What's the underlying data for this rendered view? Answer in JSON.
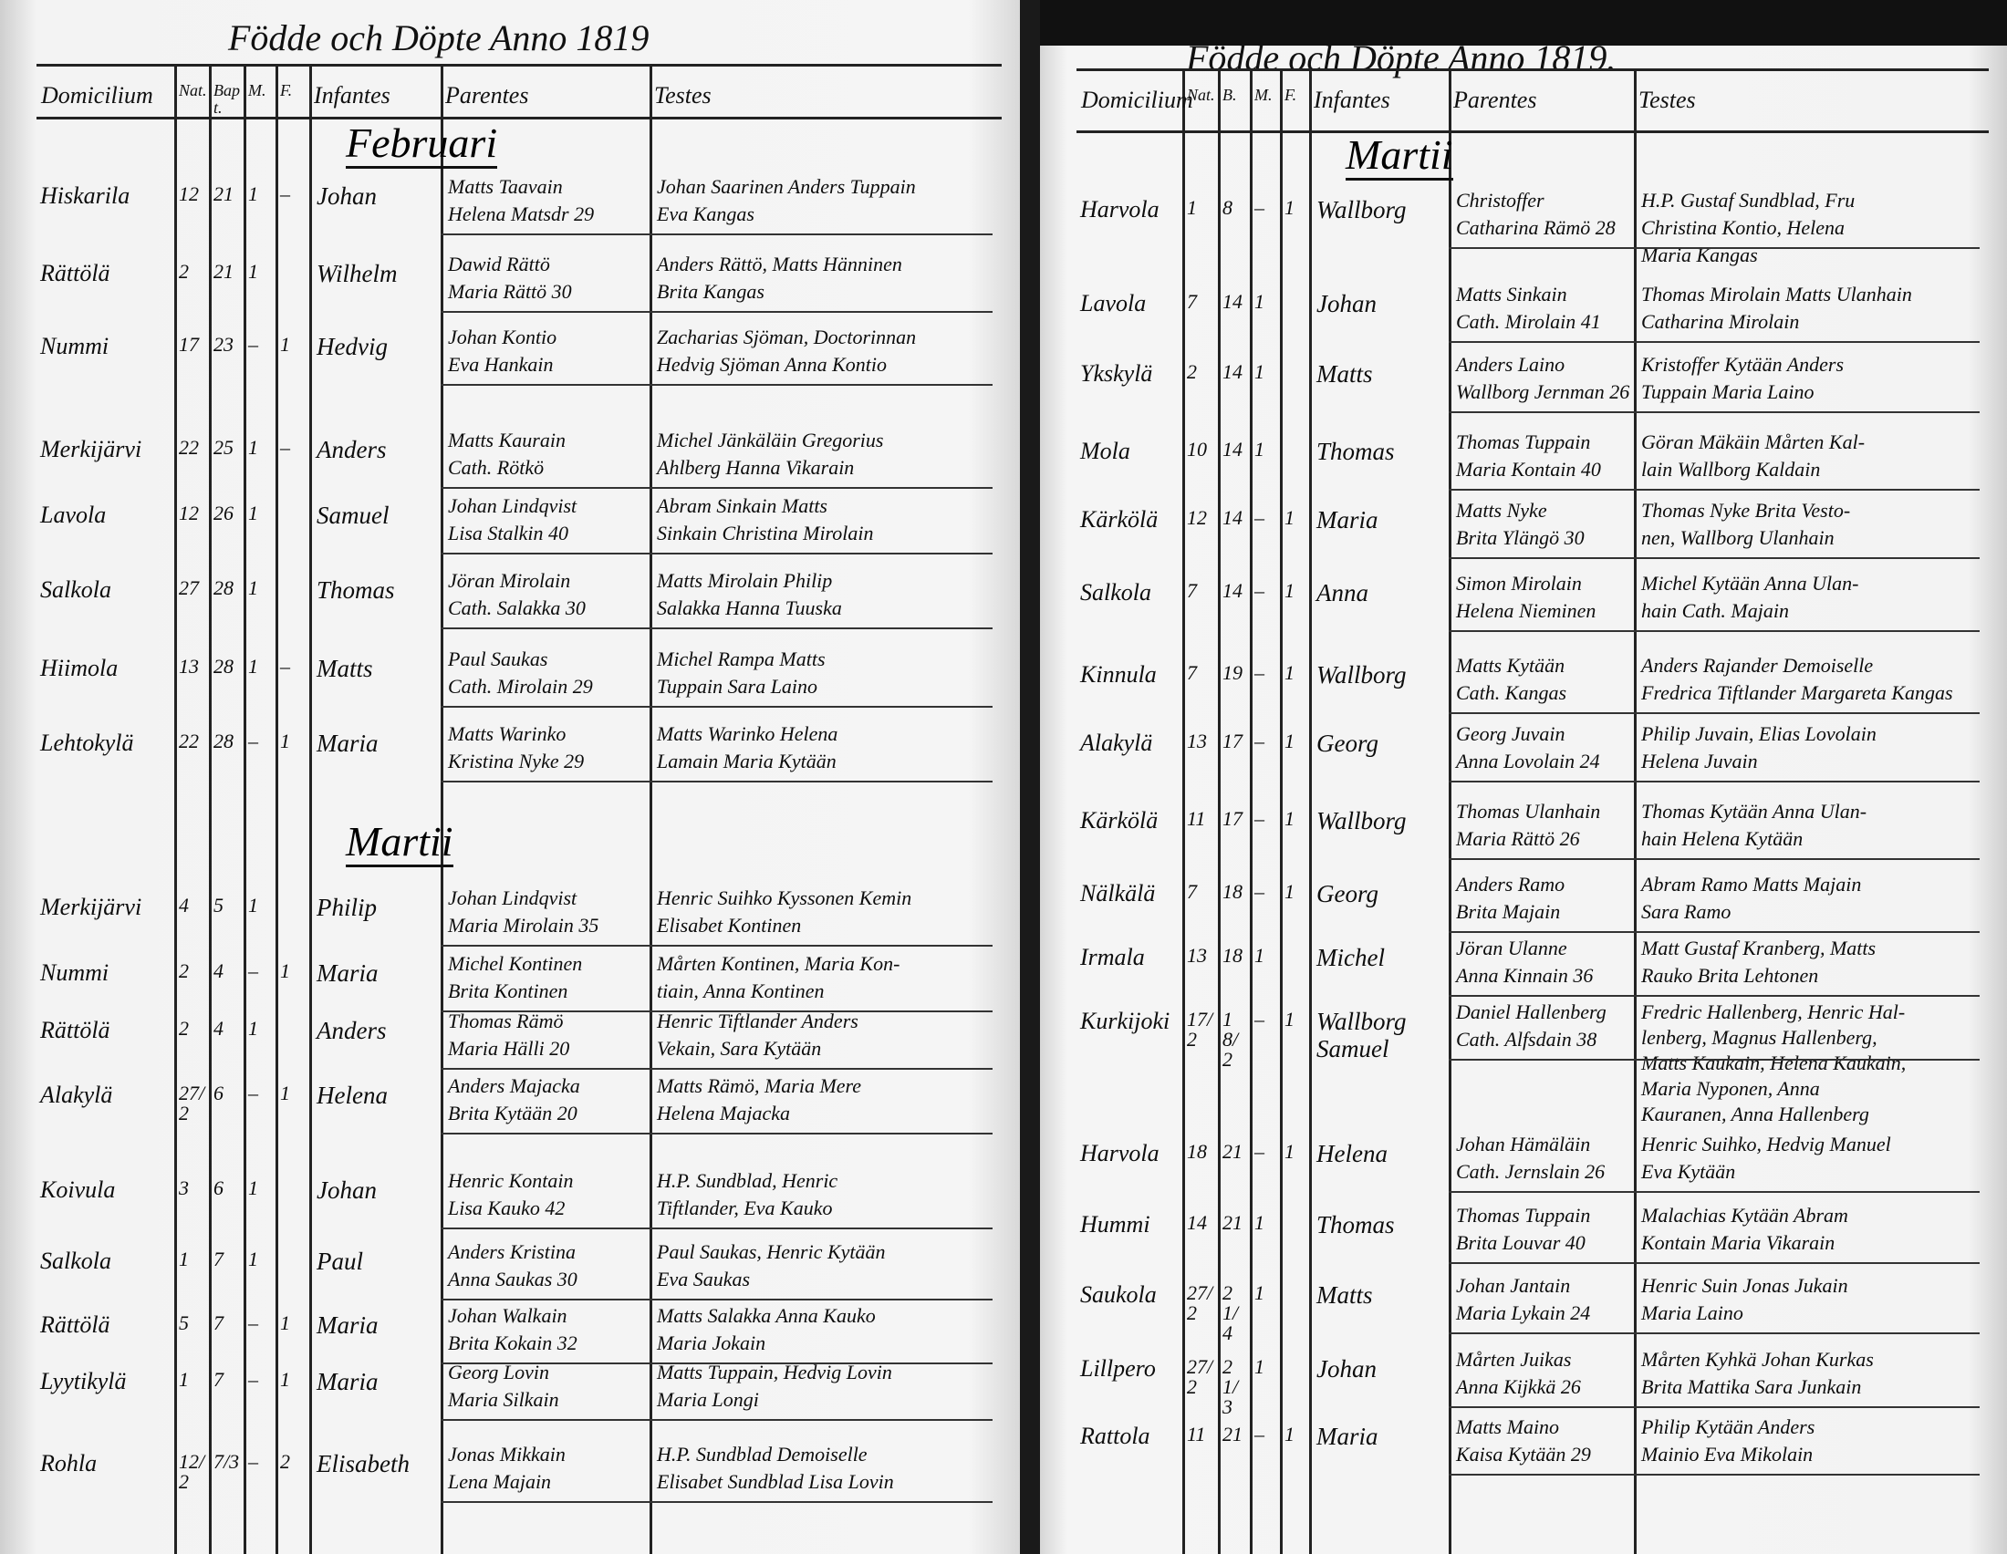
{
  "left_page": {
    "title": "Födde och Döpte Anno 1819",
    "columns": [
      "Domicilium",
      "Nat.",
      "Bapt.",
      "M.",
      "F.",
      "Infantes",
      "Parentes",
      "Testes"
    ],
    "months": [
      {
        "label": "Februari",
        "before_row": 0
      },
      {
        "label": "Martii",
        "before_row": 8
      }
    ],
    "rows": [
      {
        "domicilium": "Hiskarila",
        "nat": "12",
        "bapt": "21",
        "m": "1",
        "f": "–",
        "infans": "Johan",
        "parentes": [
          "Matts Taavain",
          "Helena Matsdr 29"
        ],
        "testes": [
          "Johan Saarinen Anders Tuppain",
          "Eva Kangas"
        ]
      },
      {
        "domicilium": "Rättölä",
        "nat": "2",
        "bapt": "21",
        "m": "1",
        "f": "",
        "infans": "Wilhelm",
        "parentes": [
          "Dawid Rättö",
          "Maria Rättö 30"
        ],
        "testes": [
          "Anders Rättö, Matts Hänninen",
          "Brita Kangas"
        ]
      },
      {
        "domicilium": "Nummi",
        "nat": "17",
        "bapt": "23",
        "m": "–",
        "f": "1",
        "infans": "Hedvig",
        "parentes": [
          "Johan Kontio",
          "Eva Hankain"
        ],
        "testes": [
          "Zacharias Sjöman, Doctorinnan",
          "Hedvig Sjöman Anna Kontio"
        ]
      },
      {
        "domicilium": "Merkijärvi",
        "nat": "22",
        "bapt": "25",
        "m": "1",
        "f": "–",
        "infans": "Anders",
        "parentes": [
          "Matts Kaurain",
          "Cath. Rötkö"
        ],
        "testes": [
          "Michel Jänkäläin Gregorius",
          "Ahlberg Hanna Vikarain"
        ]
      },
      {
        "domicilium": "Lavola",
        "nat": "12",
        "bapt": "26",
        "m": "1",
        "f": "",
        "infans": "Samuel",
        "parentes": [
          "Johan Lindqvist",
          "Lisa Stalkin 40"
        ],
        "testes": [
          "Abram Sinkain Matts",
          "Sinkain Christina Mirolain"
        ]
      },
      {
        "domicilium": "Salkola",
        "nat": "27",
        "bapt": "28",
        "m": "1",
        "f": "",
        "infans": "Thomas",
        "parentes": [
          "Jöran Mirolain",
          "Cath. Salakka 30"
        ],
        "testes": [
          "Matts Mirolain Philip",
          "Salakka Hanna Tuuska"
        ]
      },
      {
        "domicilium": "Hiimola",
        "nat": "13",
        "bapt": "28",
        "m": "1",
        "f": "–",
        "infans": "Matts",
        "parentes": [
          "Paul Saukas",
          "Cath. Mirolain 29"
        ],
        "testes": [
          "Michel Rampa Matts",
          "Tuppain Sara Laino"
        ]
      },
      {
        "domicilium": "Lehtokylä",
        "nat": "22",
        "bapt": "28",
        "m": "–",
        "f": "1",
        "infans": "Maria",
        "parentes": [
          "Matts Warinko",
          "Kristina Nyke 29"
        ],
        "testes": [
          "Matts Warinko Helena",
          "Lamain Maria Kytään"
        ]
      },
      {
        "domicilium": "Merkijärvi",
        "nat": "4",
        "bapt": "5",
        "m": "1",
        "f": "",
        "infans": "Philip",
        "parentes": [
          "Johan Lindqvist",
          "Maria Mirolain 35"
        ],
        "testes": [
          "Henric Suihko Kyssonen Kemin",
          "Elisabet Kontinen"
        ]
      },
      {
        "domicilium": "Nummi",
        "nat": "2",
        "bapt": "4",
        "m": "–",
        "f": "1",
        "infans": "Maria",
        "parentes": [
          "Michel Kontinen",
          "Brita Kontinen"
        ],
        "testes": [
          "Mårten Kontinen, Maria Kon-",
          "tiain, Anna Kontinen"
        ]
      },
      {
        "domicilium": "Rättölä",
        "nat": "2",
        "bapt": "4",
        "m": "1",
        "f": "",
        "infans": "Anders",
        "parentes": [
          "Thomas Rämö",
          "Maria Hälli 20"
        ],
        "testes": [
          "Henric Tiftlander Anders",
          "Vekain, Sara Kytään"
        ]
      },
      {
        "domicilium": "Alakylä",
        "nat": "27/2",
        "bapt": "6",
        "m": "–",
        "f": "1",
        "infans": "Helena",
        "parentes": [
          "Anders Majacka",
          "Brita Kytään 20"
        ],
        "testes": [
          "Matts Rämö, Maria Mere",
          "Helena Majacka"
        ]
      },
      {
        "domicilium": "Koivula",
        "nat": "3",
        "bapt": "6",
        "m": "1",
        "f": "",
        "infans": "Johan",
        "parentes": [
          "Henric Kontain",
          "Lisa Kauko 42"
        ],
        "testes": [
          "H.P. Sundblad, Henric",
          "Tiftlander, Eva Kauko"
        ]
      },
      {
        "domicilium": "Salkola",
        "nat": "1",
        "bapt": "7",
        "m": "1",
        "f": "",
        "infans": "Paul",
        "parentes": [
          "Anders Kristina",
          "Anna Saukas 30"
        ],
        "testes": [
          "Paul Saukas, Henric Kytään",
          "Eva Saukas"
        ]
      },
      {
        "domicilium": "Rättölä",
        "nat": "5",
        "bapt": "7",
        "m": "–",
        "f": "1",
        "infans": "Maria",
        "parentes": [
          "Johan Walkain",
          "Brita Kokain 32"
        ],
        "testes": [
          "Matts Salakka Anna Kauko",
          "Maria Jokain"
        ]
      },
      {
        "domicilium": "Lyytikylä",
        "nat": "1",
        "bapt": "7",
        "m": "–",
        "f": "1",
        "infans": "Maria",
        "parentes": [
          "Georg Lovin",
          "Maria Silkain"
        ],
        "testes": [
          "Matts Tuppain, Hedvig Lovin",
          "Maria Longi"
        ]
      },
      {
        "domicilium": "Rohla",
        "nat": "12/2",
        "bapt": "7/3",
        "m": "–",
        "f": "2",
        "infans": "Elisabeth",
        "parentes": [
          "Jonas Mikkain",
          "Lena Majain"
        ],
        "testes": [
          "H.P. Sundblad Demoiselle",
          "Elisabet Sundblad Lisa Lovin"
        ]
      }
    ]
  },
  "right_page": {
    "title": "Födde och Döpte Anno 1819.",
    "columns": [
      "Domicilium",
      "Nat.",
      "B.",
      "M.",
      "F.",
      "Infantes",
      "Parentes",
      "Testes"
    ],
    "months": [
      {
        "label": "Martii",
        "before_row": 0
      }
    ],
    "rows": [
      {
        "domicilium": "Harvola",
        "nat": "1",
        "bapt": "8",
        "m": "–",
        "f": "1",
        "infans": "Wallborg",
        "parentes": [
          "Christoffer",
          "Catharina Rämö 28"
        ],
        "testes": [
          "H.P. Gustaf Sundblad, Fru",
          "Christina Kontio, Helena",
          "Maria Kangas"
        ]
      },
      {
        "domicilium": "Lavola",
        "nat": "7",
        "bapt": "14",
        "m": "1",
        "f": "",
        "infans": "Johan",
        "parentes": [
          "Matts Sinkain",
          "Cath. Mirolain 41"
        ],
        "testes": [
          "Thomas Mirolain Matts Ulanhain",
          "Catharina Mirolain"
        ]
      },
      {
        "domicilium": "Ykskylä",
        "nat": "2",
        "bapt": "14",
        "m": "1",
        "f": "",
        "infans": "Matts",
        "parentes": [
          "Anders Laino",
          "Wallborg Jernman 26"
        ],
        "testes": [
          "Kristoffer Kytään Anders",
          "Tuppain Maria Laino"
        ]
      },
      {
        "domicilium": "Mola",
        "nat": "10",
        "bapt": "14",
        "m": "1",
        "f": "",
        "infans": "Thomas",
        "parentes": [
          "Thomas Tuppain",
          "Maria Kontain 40"
        ],
        "testes": [
          "Göran Mäkäin Mårten Kal-",
          "lain Wallborg Kaldain"
        ]
      },
      {
        "domicilium": "Kärkölä",
        "nat": "12",
        "bapt": "14",
        "m": "–",
        "f": "1",
        "infans": "Maria",
        "parentes": [
          "Matts Nyke",
          "Brita Ylängö 30"
        ],
        "testes": [
          "Thomas Nyke Brita Vesto-",
          "nen, Wallborg Ulanhain"
        ]
      },
      {
        "domicilium": "Salkola",
        "nat": "7",
        "bapt": "14",
        "m": "–",
        "f": "1",
        "infans": "Anna",
        "parentes": [
          "Simon Mirolain",
          "Helena Nieminen"
        ],
        "testes": [
          "Michel Kytään Anna Ulan-",
          "hain Cath. Majain"
        ]
      },
      {
        "domicilium": "Kinnula",
        "nat": "7",
        "bapt": "19",
        "m": "–",
        "f": "1",
        "infans": "Wallborg",
        "parentes": [
          "Matts Kytään",
          "Cath. Kangas"
        ],
        "testes": [
          "Anders Rajander Demoiselle",
          "Fredrica Tiftlander Margareta Kangas"
        ]
      },
      {
        "domicilium": "Alakylä",
        "nat": "13",
        "bapt": "17",
        "m": "–",
        "f": "1",
        "infans": "Georg",
        "parentes": [
          "Georg Juvain",
          "Anna Lovolain 24"
        ],
        "testes": [
          "Philip Juvain, Elias Lovolain",
          "Helena Juvain"
        ]
      },
      {
        "domicilium": "Kärkölä",
        "nat": "11",
        "bapt": "17",
        "m": "–",
        "f": "1",
        "infans": "Wallborg",
        "parentes": [
          "Thomas Ulanhain",
          "Maria Rättö 26"
        ],
        "testes": [
          "Thomas Kytään Anna Ulan-",
          "hain Helena Kytään"
        ]
      },
      {
        "domicilium": "Nälkälä",
        "nat": "7",
        "bapt": "18",
        "m": "–",
        "f": "1",
        "infans": "Georg",
        "parentes": [
          "Anders Ramo",
          "Brita Majain"
        ],
        "testes": [
          "Abram Ramo Matts Majain",
          "Sara Ramo"
        ]
      },
      {
        "domicilium": "Irmala",
        "nat": "13",
        "bapt": "18",
        "m": "1",
        "f": "",
        "infans": "Michel",
        "parentes": [
          "Jöran Ulanne",
          "Anna Kinnain 36"
        ],
        "testes": [
          "Matt Gustaf Kranberg, Matts",
          "Rauko Brita Lehtonen"
        ]
      },
      {
        "domicilium": "Kurkijoki",
        "nat": "17/2",
        "bapt": "18/2",
        "m": "–",
        "f": "1",
        "infans": "Wallborg Samuel",
        "parentes": [
          "Daniel Hallenberg",
          "Cath. Alfsdain 38"
        ],
        "testes": [
          "Fredric Hallenberg, Henric Hal-",
          "lenberg, Magnus Hallenberg,",
          "Matts Kaukain, Helena Kaukain,",
          "Maria Nyponen, Anna",
          "Kauranen, Anna Hallenberg"
        ]
      },
      {
        "domicilium": "Harvola",
        "nat": "18",
        "bapt": "21",
        "m": "–",
        "f": "1",
        "infans": "Helena",
        "parentes": [
          "Johan Hämäläin",
          "Cath. Jernslain 26"
        ],
        "testes": [
          "Henric Suihko, Hedvig Manuel",
          "Eva Kytään"
        ]
      },
      {
        "domicilium": "Hummi",
        "nat": "14",
        "bapt": "21",
        "m": "1",
        "f": "",
        "infans": "Thomas",
        "parentes": [
          "Thomas Tuppain",
          "Brita Louvar 40"
        ],
        "testes": [
          "Malachias Kytään Abram",
          "Kontain Maria Vikarain"
        ]
      },
      {
        "domicilium": "Saukola",
        "nat": "27/2",
        "bapt": "21/4",
        "m": "1",
        "f": "",
        "infans": "Matts",
        "parentes": [
          "Johan Jantain",
          "Maria Lykain 24"
        ],
        "testes": [
          "Henric Suin Jonas Jukain",
          "Maria Laino"
        ]
      },
      {
        "domicilium": "Lillpero",
        "nat": "27/2",
        "bapt": "21/3",
        "m": "1",
        "f": "",
        "infans": "Johan",
        "parentes": [
          "Mårten Juikas",
          "Anna Kijkkä 26"
        ],
        "testes": [
          "Mårten Kyhkä Johan Kurkas",
          "Brita Mattika Sara Junkain"
        ]
      },
      {
        "domicilium": "Rattola",
        "nat": "11",
        "bapt": "21",
        "m": "–",
        "f": "1",
        "infans": "Maria",
        "parentes": [
          "Matts Maino",
          "Kaisa Kytään 29"
        ],
        "testes": [
          "Philip Kytään Anders",
          "Mainio Eva Mikolain"
        ]
      }
    ]
  }
}
